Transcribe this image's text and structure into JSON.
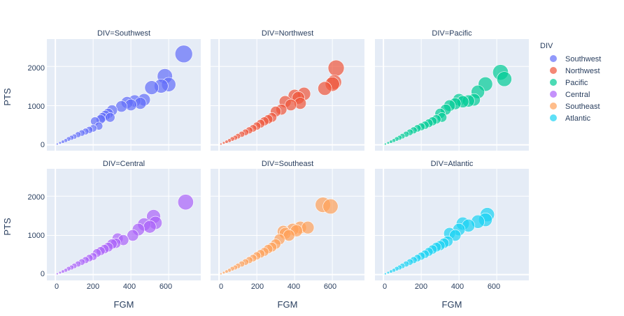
{
  "legend": {
    "title": "DIV",
    "items": [
      "Southwest",
      "Northwest",
      "Pacific",
      "Central",
      "Southeast",
      "Atlantic"
    ]
  },
  "colors": {
    "Southwest": "#636efa",
    "Northwest": "#EF553B",
    "Pacific": "#00cc96",
    "Central": "#ab63fa",
    "Southeast": "#FFA15A",
    "Atlantic": "#19d3f3",
    "plot_bg": "#e5ecf6",
    "grid": "#ffffff"
  },
  "chart_data": {
    "type": "scatter",
    "subtype": "bubble",
    "xlabel": "FGM",
    "ylabel": "PTS",
    "xlim": [
      -45,
      770
    ],
    "ylim": [
      -150,
      2700
    ],
    "xticks": [
      0,
      200,
      400,
      600
    ],
    "yticks": [
      0,
      1000,
      2000
    ],
    "grid": true,
    "legend_position": "right",
    "size_variable": "PTS",
    "facets": [
      {
        "title": "DIV=Southwest",
        "name": "Southwest",
        "x": [
          10,
          25,
          40,
          55,
          70,
          85,
          100,
          120,
          140,
          160,
          180,
          200,
          210,
          230,
          240,
          250,
          265,
          280,
          290,
          300,
          350,
          380,
          400,
          420,
          450,
          470,
          510,
          560,
          580,
          600,
          680
        ],
        "y": [
          20,
          50,
          80,
          110,
          150,
          180,
          210,
          260,
          300,
          340,
          380,
          420,
          600,
          480,
          650,
          700,
          750,
          800,
          700,
          880,
          980,
          1080,
          1020,
          1120,
          1060,
          1150,
          1460,
          1500,
          1750,
          1540,
          2320
        ]
      },
      {
        "title": "DIV=Northwest",
        "name": "Northwest",
        "x": [
          10,
          25,
          40,
          55,
          70,
          85,
          100,
          120,
          140,
          160,
          180,
          200,
          220,
          240,
          260,
          280,
          300,
          330,
          350,
          380,
          400,
          420,
          430,
          450,
          560,
          600,
          610,
          620
        ],
        "y": [
          20,
          50,
          80,
          110,
          150,
          180,
          220,
          270,
          320,
          370,
          420,
          480,
          540,
          600,
          650,
          700,
          850,
          900,
          1100,
          1020,
          1250,
          1200,
          1060,
          1300,
          1440,
          1550,
          1600,
          1960
        ]
      },
      {
        "title": "DIV=Pacific",
        "name": "Pacific",
        "x": [
          10,
          25,
          40,
          55,
          70,
          85,
          100,
          120,
          140,
          160,
          180,
          200,
          220,
          240,
          260,
          280,
          300,
          310,
          330,
          350,
          380,
          400,
          420,
          450,
          480,
          500,
          540,
          620,
          640
        ],
        "y": [
          20,
          50,
          80,
          110,
          150,
          180,
          220,
          270,
          320,
          370,
          420,
          460,
          500,
          550,
          600,
          650,
          800,
          700,
          900,
          1000,
          1050,
          1150,
          1100,
          1120,
          1150,
          1350,
          1550,
          1850,
          1680
        ]
      },
      {
        "title": "DIV=Central",
        "name": "Central",
        "x": [
          10,
          25,
          40,
          55,
          70,
          85,
          100,
          120,
          140,
          160,
          180,
          200,
          220,
          240,
          260,
          280,
          300,
          320,
          330,
          360,
          410,
          440,
          470,
          500,
          520,
          530,
          690
        ],
        "y": [
          20,
          50,
          80,
          110,
          150,
          180,
          220,
          270,
          320,
          370,
          420,
          460,
          550,
          600,
          650,
          700,
          780,
          800,
          920,
          880,
          1000,
          1150,
          1280,
          1220,
          1480,
          1320,
          1850
        ]
      },
      {
        "title": "DIV=Southeast",
        "name": "Southeast",
        "x": [
          10,
          25,
          40,
          55,
          70,
          85,
          100,
          120,
          140,
          160,
          180,
          200,
          220,
          240,
          260,
          280,
          300,
          320,
          340,
          350,
          370,
          390,
          410,
          430,
          470,
          550,
          590
        ],
        "y": [
          20,
          50,
          80,
          110,
          150,
          180,
          220,
          270,
          320,
          370,
          420,
          480,
          530,
          580,
          650,
          700,
          780,
          900,
          1100,
          1050,
          1000,
          1150,
          1120,
          1200,
          1200,
          1780,
          1740
        ]
      },
      {
        "title": "DIV=Atlantic",
        "name": "Atlantic",
        "x": [
          10,
          25,
          40,
          55,
          70,
          85,
          100,
          120,
          140,
          160,
          180,
          200,
          220,
          240,
          260,
          280,
          300,
          320,
          340,
          350,
          380,
          400,
          420,
          450,
          500,
          540,
          550
        ],
        "y": [
          20,
          50,
          80,
          110,
          150,
          180,
          220,
          270,
          320,
          370,
          420,
          470,
          520,
          580,
          640,
          700,
          740,
          800,
          850,
          1050,
          1000,
          1150,
          1300,
          1250,
          1350,
          1400,
          1530
        ]
      }
    ]
  }
}
